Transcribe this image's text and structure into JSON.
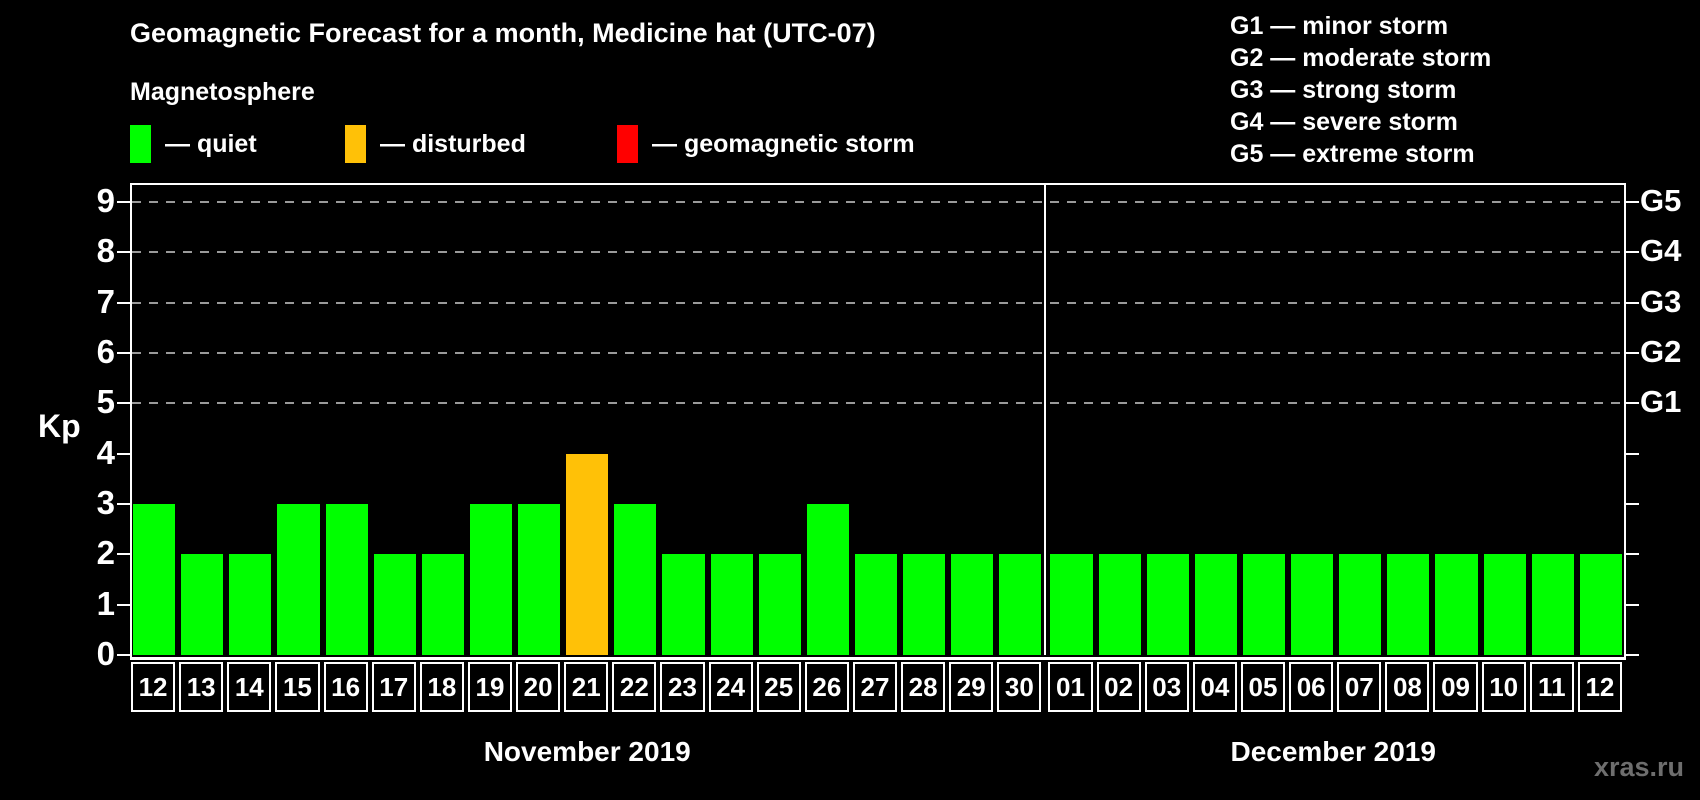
{
  "title": "Geomagnetic Forecast for a month, Medicine hat (UTC-07)",
  "legend": {
    "heading": "Magnetosphere",
    "items": [
      {
        "name": "quiet",
        "label": "— quiet",
        "color": "#00ff00"
      },
      {
        "name": "disturbed",
        "label": "— disturbed",
        "color": "#ffc107"
      },
      {
        "name": "storm",
        "label": "— geomagnetic storm",
        "color": "#ff0000"
      }
    ]
  },
  "g_legend": [
    "G1 — minor storm",
    "G2 — moderate storm",
    "G3 — strong storm",
    "G4 — severe storm",
    "G5 — extreme storm"
  ],
  "watermark": "xras.ru",
  "chart_data": {
    "type": "bar",
    "title": "Geomagnetic Forecast for a month, Medicine hat (UTC-07)",
    "xlabel": "",
    "ylabel": "Kp",
    "ylim": [
      0,
      9.4
    ],
    "yticks": [
      0,
      1,
      2,
      3,
      4,
      5,
      6,
      7,
      8,
      9
    ],
    "grid_kp_levels": [
      5,
      6,
      7,
      8,
      9
    ],
    "right_axis_labels": [
      {
        "label": "G1",
        "kp": 5
      },
      {
        "label": "G2",
        "kp": 6
      },
      {
        "label": "G3",
        "kp": 7
      },
      {
        "label": "G4",
        "kp": 8
      },
      {
        "label": "G5",
        "kp": 9
      }
    ],
    "status_colors": {
      "quiet": "#00ff00",
      "disturbed": "#ffc107",
      "storm": "#ff0000"
    },
    "months": [
      {
        "label": "November 2019",
        "days": [
          {
            "date": "12",
            "kp": 3,
            "status": "quiet"
          },
          {
            "date": "13",
            "kp": 2,
            "status": "quiet"
          },
          {
            "date": "14",
            "kp": 2,
            "status": "quiet"
          },
          {
            "date": "15",
            "kp": 3,
            "status": "quiet"
          },
          {
            "date": "16",
            "kp": 3,
            "status": "quiet"
          },
          {
            "date": "17",
            "kp": 2,
            "status": "quiet"
          },
          {
            "date": "18",
            "kp": 2,
            "status": "quiet"
          },
          {
            "date": "19",
            "kp": 3,
            "status": "quiet"
          },
          {
            "date": "20",
            "kp": 3,
            "status": "quiet"
          },
          {
            "date": "21",
            "kp": 4,
            "status": "disturbed"
          },
          {
            "date": "22",
            "kp": 3,
            "status": "quiet"
          },
          {
            "date": "23",
            "kp": 2,
            "status": "quiet"
          },
          {
            "date": "24",
            "kp": 2,
            "status": "quiet"
          },
          {
            "date": "25",
            "kp": 2,
            "status": "quiet"
          },
          {
            "date": "26",
            "kp": 3,
            "status": "quiet"
          },
          {
            "date": "27",
            "kp": 2,
            "status": "quiet"
          },
          {
            "date": "28",
            "kp": 2,
            "status": "quiet"
          },
          {
            "date": "29",
            "kp": 2,
            "status": "quiet"
          },
          {
            "date": "30",
            "kp": 2,
            "status": "quiet"
          }
        ]
      },
      {
        "label": "December 2019",
        "days": [
          {
            "date": "01",
            "kp": 2,
            "status": "quiet"
          },
          {
            "date": "02",
            "kp": 2,
            "status": "quiet"
          },
          {
            "date": "03",
            "kp": 2,
            "status": "quiet"
          },
          {
            "date": "04",
            "kp": 2,
            "status": "quiet"
          },
          {
            "date": "05",
            "kp": 2,
            "status": "quiet"
          },
          {
            "date": "06",
            "kp": 2,
            "status": "quiet"
          },
          {
            "date": "07",
            "kp": 2,
            "status": "quiet"
          },
          {
            "date": "08",
            "kp": 2,
            "status": "quiet"
          },
          {
            "date": "09",
            "kp": 2,
            "status": "quiet"
          },
          {
            "date": "10",
            "kp": 2,
            "status": "quiet"
          },
          {
            "date": "11",
            "kp": 2,
            "status": "quiet"
          },
          {
            "date": "12",
            "kp": 2,
            "status": "quiet"
          }
        ]
      }
    ]
  }
}
